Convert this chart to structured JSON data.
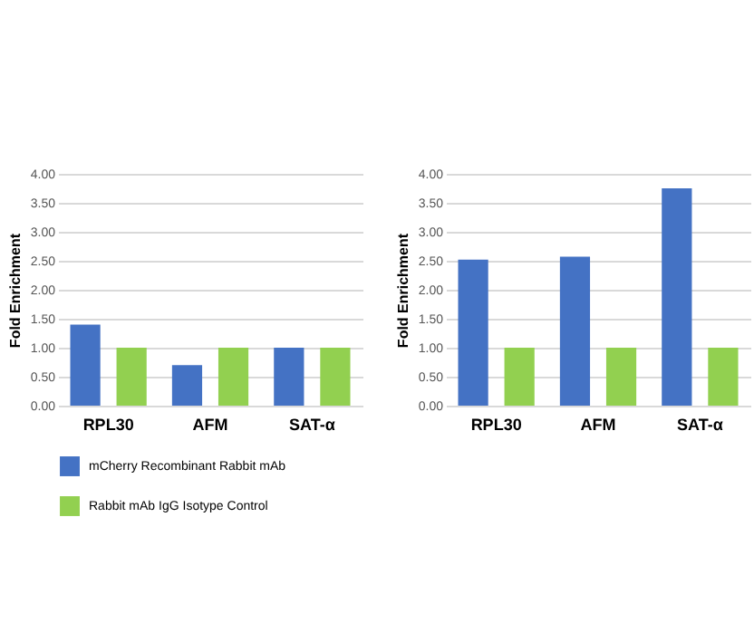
{
  "chart_data": [
    {
      "type": "bar",
      "ylabel": "Fold Enrichment",
      "categories": [
        "RPL30",
        "AFM",
        "SAT-α"
      ],
      "series": [
        {
          "name": "mCherry Recombinant Rabbit mAb",
          "color": "#4472c4",
          "values": [
            1.4,
            0.7,
            1.0
          ]
        },
        {
          "name": "Rabbit mAb IgG Isotype Control",
          "color": "#92d050",
          "values": [
            1.0,
            1.0,
            1.0
          ]
        }
      ],
      "ylim": [
        0,
        4
      ],
      "yticks": [
        {
          "value": 0,
          "label": "0.00"
        },
        {
          "value": 0.5,
          "label": "0.50"
        },
        {
          "value": 1,
          "label": "1.00"
        },
        {
          "value": 1.5,
          "label": "1.50"
        },
        {
          "value": 2,
          "label": "2.00"
        },
        {
          "value": 2.5,
          "label": "2.50"
        },
        {
          "value": 3,
          "label": "3.00"
        },
        {
          "value": 3.5,
          "label": "3.50"
        },
        {
          "value": 4,
          "label": "4.00"
        }
      ],
      "grid": "y",
      "legend": "bottom"
    },
    {
      "type": "bar",
      "ylabel": "Fold Enrichment",
      "categories": [
        "RPL30",
        "AFM",
        "SAT-α"
      ],
      "series": [
        {
          "name": "mCherry Recombinant Rabbit mAb",
          "color": "#4472c4",
          "values": [
            2.52,
            2.57,
            3.75
          ]
        },
        {
          "name": "Rabbit mAb IgG Isotype Control",
          "color": "#92d050",
          "values": [
            1.0,
            1.0,
            1.0
          ]
        }
      ],
      "ylim": [
        0,
        4
      ],
      "yticks": [
        {
          "value": 0,
          "label": "0.00"
        },
        {
          "value": 0.5,
          "label": "0.50"
        },
        {
          "value": 1,
          "label": "1.00"
        },
        {
          "value": 1.5,
          "label": "1.50"
        },
        {
          "value": 2,
          "label": "2.00"
        },
        {
          "value": 2.5,
          "label": "2.50"
        },
        {
          "value": 3,
          "label": "3.00"
        },
        {
          "value": 3.5,
          "label": "3.50"
        },
        {
          "value": 4,
          "label": "4.00"
        }
      ],
      "grid": "y",
      "legend": "bottom"
    }
  ]
}
